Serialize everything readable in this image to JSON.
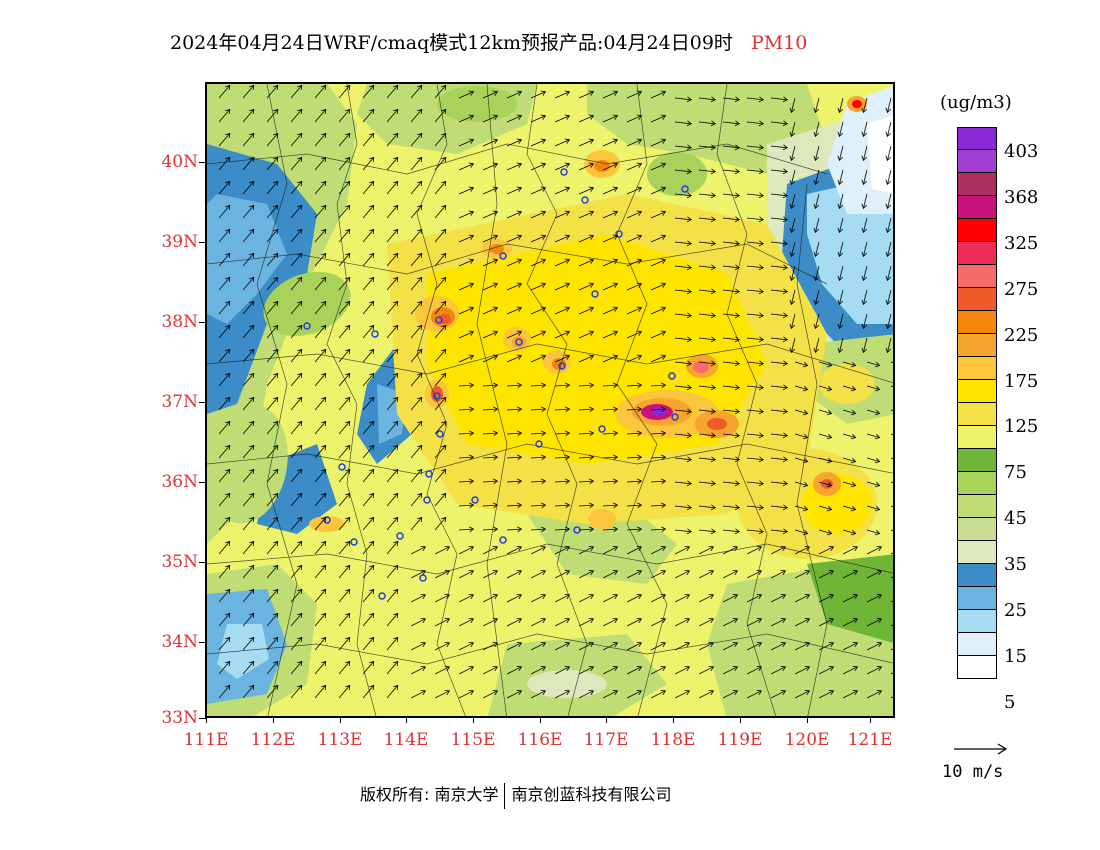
{
  "title": {
    "main": "2024年04月24日WRF/cmaq模式12km预报产品:04月24日09时",
    "variable": "PM10"
  },
  "map": {
    "lat_labels": [
      "40N",
      "39N",
      "38N",
      "37N",
      "36N",
      "35N",
      "34N",
      "33N"
    ],
    "lon_labels": [
      "111E",
      "112E",
      "113E",
      "114E",
      "115E",
      "116E",
      "117E",
      "118E",
      "119E",
      "120E",
      "121E"
    ],
    "colors": {
      "white": "#ffffff",
      "c5": "#dff0fa",
      "c15": "#a6dcf2",
      "c20": "#6cb4e0",
      "c25": "#3c8cc8",
      "c30": "#dde8bc",
      "c35": "#bfdd74",
      "c40": "#a9d25a",
      "c45": "#6fb535",
      "c75": "#eef36c",
      "c100": "#f3e147",
      "c125": "#ffe400",
      "c150": "#fbc53c",
      "c175": "#f7a52f",
      "c200": "#f5860c",
      "c225": "#ee5a2a",
      "c250": "#f66a6a",
      "c275": "#ee2b54",
      "c325": "#ff0000",
      "c350": "#c8127c",
      "c368": "#aa3060",
      "c390": "#a040d0",
      "c403": "#8a2ad6"
    }
  },
  "colorbar": {
    "unit": "(ug/m3)",
    "labels": [
      "403",
      "368",
      "325",
      "275",
      "225",
      "175",
      "125",
      "75",
      "45",
      "35",
      "25",
      "15",
      "5"
    ],
    "segments": [
      "#8a2ad6",
      "#a040d0",
      "#aa3060",
      "#c8127c",
      "#ff0000",
      "#ee2b54",
      "#f66a6a",
      "#ee5a2a",
      "#f5860c",
      "#f7a52f",
      "#fbc53c",
      "#ffe400",
      "#f3e147",
      "#eef36c",
      "#6fb535",
      "#a9d25a",
      "#bfdd74",
      "#c8dc94",
      "#dde8bc",
      "#3c8cc8",
      "#6cb4e0",
      "#a6dcf2",
      "#dff0fa",
      "#ffffff"
    ]
  },
  "wind_key": {
    "label": "10 m/s"
  },
  "footer": {
    "copyright": "版权所有: 南京大学",
    "company": "南京创蓝科技有限公司"
  }
}
